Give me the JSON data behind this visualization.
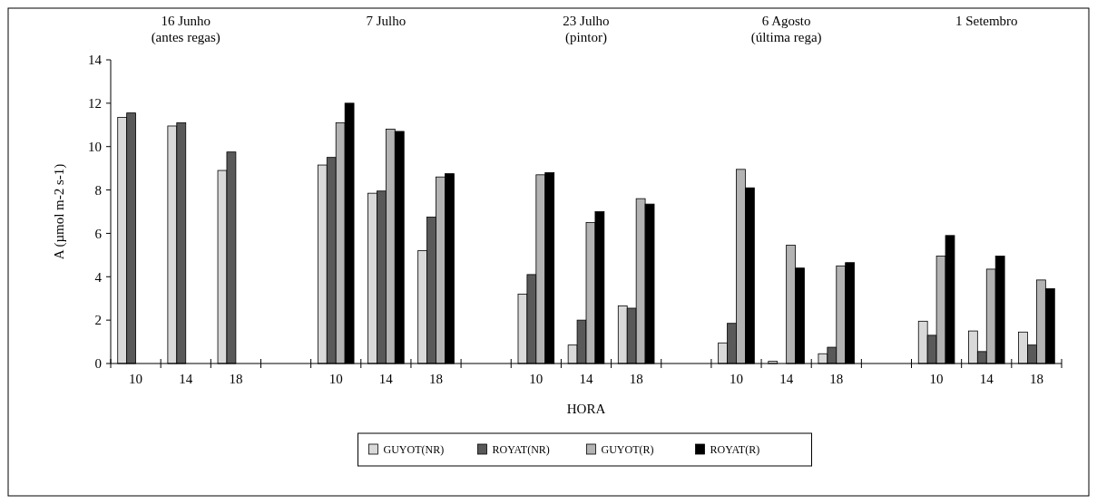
{
  "chart_data": {
    "type": "bar",
    "xlabel": "HORA",
    "ylabel": "A (µmol m-2 s-1)",
    "categories": [
      "10",
      "14",
      "18",
      null,
      "10",
      "14",
      "18",
      null,
      "10",
      "14",
      "18",
      null,
      "10",
      "14",
      "18",
      null,
      "10",
      "14",
      "18"
    ],
    "annotations": [
      "16 Junho\n(antes regas)",
      "7 Julho",
      "23 Julho\n(pintor)",
      "6 Agosto\n(última rega)",
      "1 Setembro"
    ],
    "series": [
      {
        "name": "GUYOT(NR)",
        "color": "#d9d9d9",
        "values": [
          11.35,
          10.95,
          8.9,
          null,
          9.15,
          7.85,
          5.2,
          null,
          3.2,
          0.85,
          2.65,
          null,
          0.95,
          0.1,
          0.45,
          null,
          1.95,
          1.5,
          1.45
        ]
      },
      {
        "name": "ROYAT(NR)",
        "color": "#595959",
        "values": [
          11.55,
          11.1,
          9.75,
          null,
          9.5,
          7.95,
          6.75,
          null,
          4.1,
          2.0,
          2.55,
          null,
          1.85,
          null,
          0.75,
          null,
          1.3,
          0.55,
          0.85
        ]
      },
      {
        "name": "GUYOT(R)",
        "color": "#b3b3b3",
        "values": [
          null,
          null,
          null,
          null,
          11.1,
          10.8,
          8.6,
          null,
          8.7,
          6.5,
          7.6,
          null,
          8.95,
          5.45,
          4.5,
          null,
          4.95,
          4.35,
          3.85
        ]
      },
      {
        "name": "ROYAT(R)",
        "color": "#000000",
        "values": [
          null,
          null,
          null,
          null,
          12.0,
          10.7,
          8.75,
          null,
          8.8,
          7.0,
          7.35,
          null,
          8.1,
          4.4,
          4.65,
          null,
          5.9,
          4.95,
          3.45
        ]
      }
    ],
    "ylim": [
      0,
      14
    ],
    "yticks": [
      0,
      2,
      4,
      6,
      8,
      10,
      12,
      14
    ],
    "grid": false,
    "legend": "bottom"
  }
}
